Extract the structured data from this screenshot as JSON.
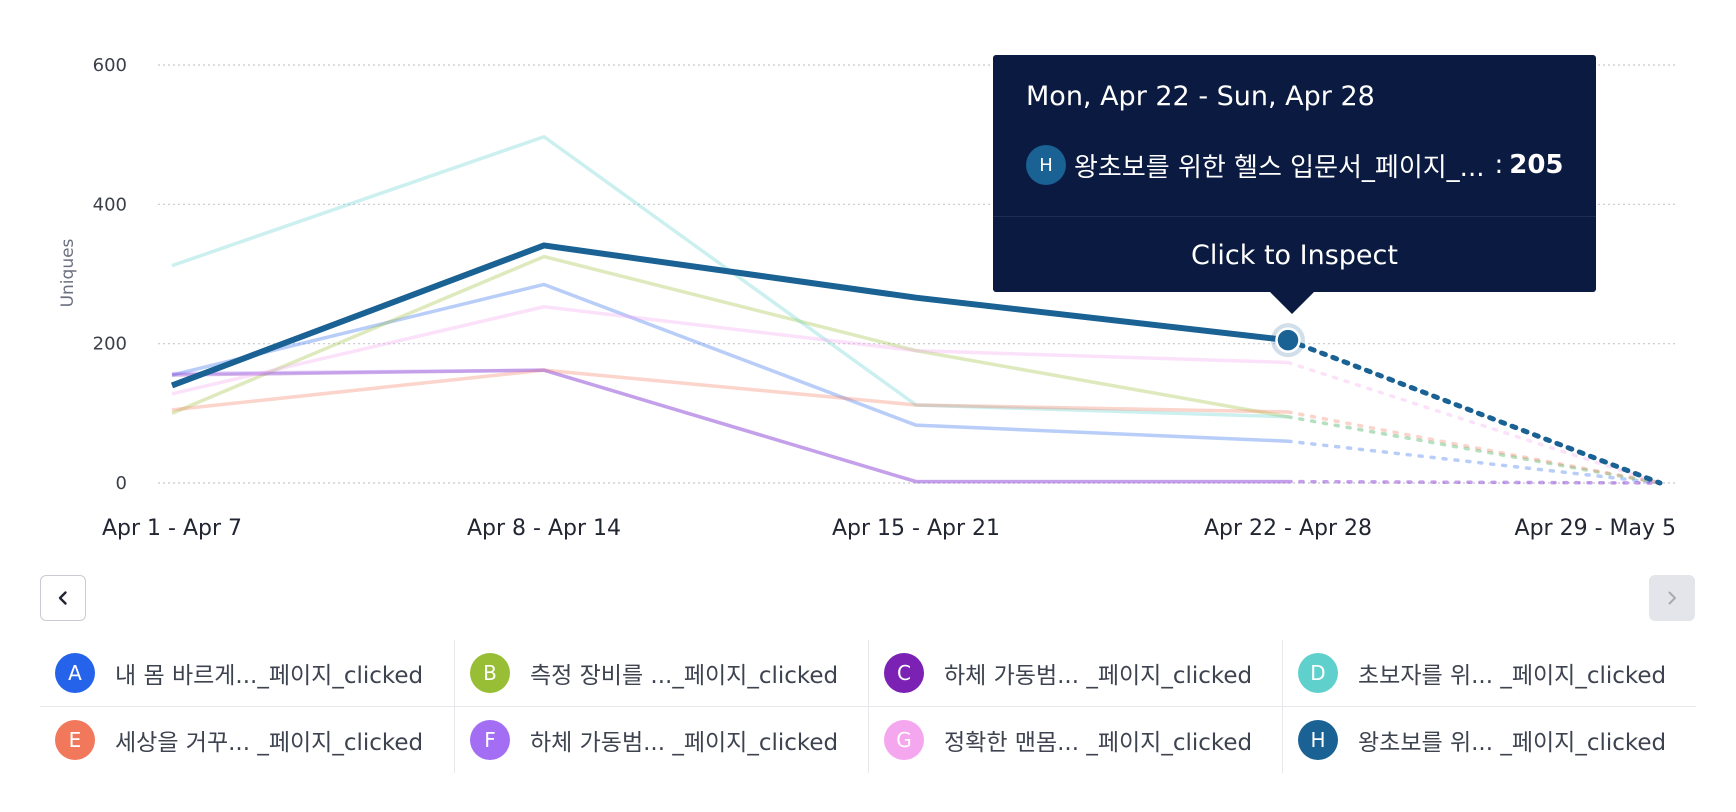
{
  "chart_data": {
    "type": "line",
    "ylabel": "Uniques",
    "ylim": [
      0,
      600
    ],
    "yticks": [
      0,
      200,
      400,
      600
    ],
    "categories": [
      "Apr 1 - Apr 7",
      "Apr 8 - Apr 14",
      "Apr 15 - Apr 21",
      "Apr 22 - Apr 28",
      "Apr 29 - May 5"
    ],
    "incomplete_from_index": 3,
    "highlighted_series": "H",
    "highlighted_index": 3,
    "series": [
      {
        "letter": "A",
        "name": "내 몸 바르게..._페이지_clicked",
        "color": "#2563eb",
        "values": [
          155,
          285,
          83,
          60,
          0
        ]
      },
      {
        "letter": "B",
        "name": "측정 장비를 ..._페이지_clicked",
        "color": "#97be35",
        "values": [
          100,
          325,
          190,
          95,
          0
        ]
      },
      {
        "letter": "C",
        "name": "하체 가동범... _페이지_clicked",
        "color": "#7b22b4",
        "values": [
          155,
          162,
          2,
          2,
          0
        ]
      },
      {
        "letter": "D",
        "name": "초보자를 위... _페이지_clicked",
        "color": "#5fd0cc",
        "values": [
          312,
          497,
          112,
          95,
          0
        ]
      },
      {
        "letter": "E",
        "name": "세상을 거꾸... _페이지_clicked",
        "color": "#f2785c",
        "values": [
          105,
          162,
          112,
          102,
          0
        ]
      },
      {
        "letter": "F",
        "name": "하체 가동범... _페이지_clicked",
        "color": "#a36ef4",
        "values": [
          157,
          162,
          2,
          2,
          0
        ]
      },
      {
        "letter": "G",
        "name": "정확한 맨몸... _페이지_clicked",
        "color": "#f4a6ee",
        "values": [
          128,
          253,
          190,
          173,
          0
        ]
      },
      {
        "letter": "H",
        "name": "왕초보를 위... _페이지_clicked",
        "color": "#1a6194",
        "values": [
          140,
          341,
          266,
          205,
          0
        ]
      }
    ]
  },
  "tooltip": {
    "date_range": "Mon, Apr 22 - Sun, Apr 28",
    "badge": "H",
    "series_name": "왕초보를 위한 헬스 입문서_페이지_...",
    "colon": ":",
    "value": "205",
    "action": "Click to Inspect"
  },
  "nav": {
    "prev_icon": "chevron-left-icon",
    "next_icon": "chevron-right-icon"
  }
}
